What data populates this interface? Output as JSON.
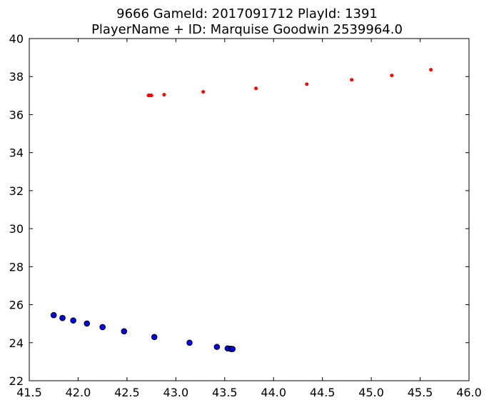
{
  "chart_data": {
    "type": "scatter",
    "title": "9666 GameId: 2017091712 PlayId: 1391",
    "subtitle": "PlayerName + ID: Marquise Goodwin 2539964.0",
    "xlim": [
      41.5,
      46.0
    ],
    "ylim": [
      22,
      40
    ],
    "xticks": [
      "41.5",
      "42.0",
      "42.5",
      "43.0",
      "43.5",
      "44.0",
      "44.5",
      "45.0",
      "45.5",
      "46.0"
    ],
    "yticks": [
      "22",
      "24",
      "26",
      "28",
      "30",
      "32",
      "34",
      "36",
      "38",
      "40"
    ],
    "grid": false,
    "series": [
      {
        "color": "#ff0000",
        "marker": "small-dot",
        "points": [
          [
            42.72,
            37.01
          ],
          [
            42.73,
            37.01
          ],
          [
            42.74,
            37.01
          ],
          [
            42.75,
            37.01
          ],
          [
            42.88,
            37.05
          ],
          [
            43.28,
            37.2
          ],
          [
            43.82,
            37.38
          ],
          [
            44.34,
            37.6
          ],
          [
            44.8,
            37.83
          ],
          [
            45.21,
            38.06
          ],
          [
            45.61,
            38.36
          ]
        ]
      },
      {
        "color": "#0000ff",
        "edgecolor": "#000000",
        "marker": "circle",
        "points": [
          [
            41.75,
            25.45
          ],
          [
            41.84,
            25.3
          ],
          [
            41.95,
            25.17
          ],
          [
            42.09,
            25.01
          ],
          [
            42.25,
            24.82
          ],
          [
            42.47,
            24.6
          ],
          [
            42.78,
            24.3
          ],
          [
            43.14,
            24.0
          ],
          [
            43.42,
            23.78
          ],
          [
            43.53,
            23.7
          ],
          [
            43.56,
            23.68
          ],
          [
            43.57,
            23.67
          ],
          [
            43.58,
            23.67
          ]
        ]
      }
    ]
  }
}
